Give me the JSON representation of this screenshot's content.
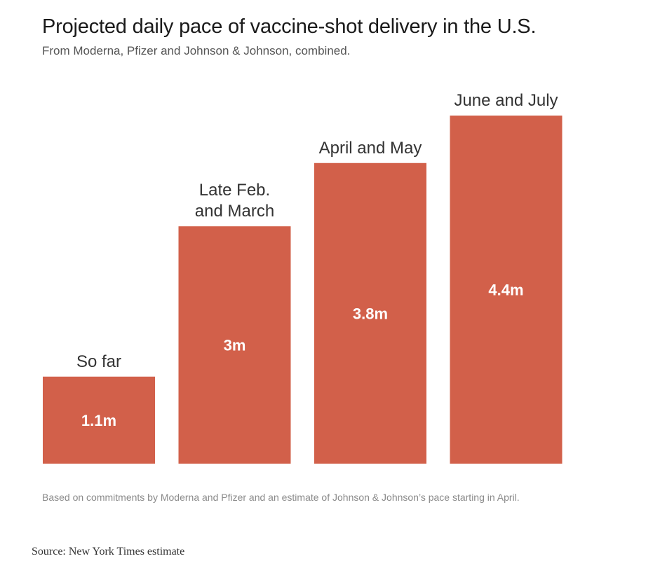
{
  "chart_data": {
    "type": "bar",
    "title": "Projected daily pace of vaccine-shot delivery in the U.S.",
    "subtitle": "From Moderna, Pfizer and Johnson & Johnson, combined.",
    "categories": [
      [
        "So far"
      ],
      [
        "Late Feb.",
        "and March"
      ],
      [
        "April and May"
      ],
      [
        "June and July"
      ]
    ],
    "values": [
      1.1,
      3.0,
      3.8,
      4.4
    ],
    "value_labels": [
      "1.1m",
      "3m",
      "3.8m",
      "4.4m"
    ],
    "unit": "million shots per day",
    "ylim": [
      0,
      4.4
    ],
    "xlabel": "",
    "ylabel": "",
    "grid": false,
    "bar_color": "#d2604a",
    "value_label_color": "#ffffff",
    "category_label_color": "#333333",
    "note": "Based on commitments by Moderna and Pfizer and an estimate of Johnson & Johnson’s pace starting in April.",
    "source": "Source: New York Times estimate"
  }
}
